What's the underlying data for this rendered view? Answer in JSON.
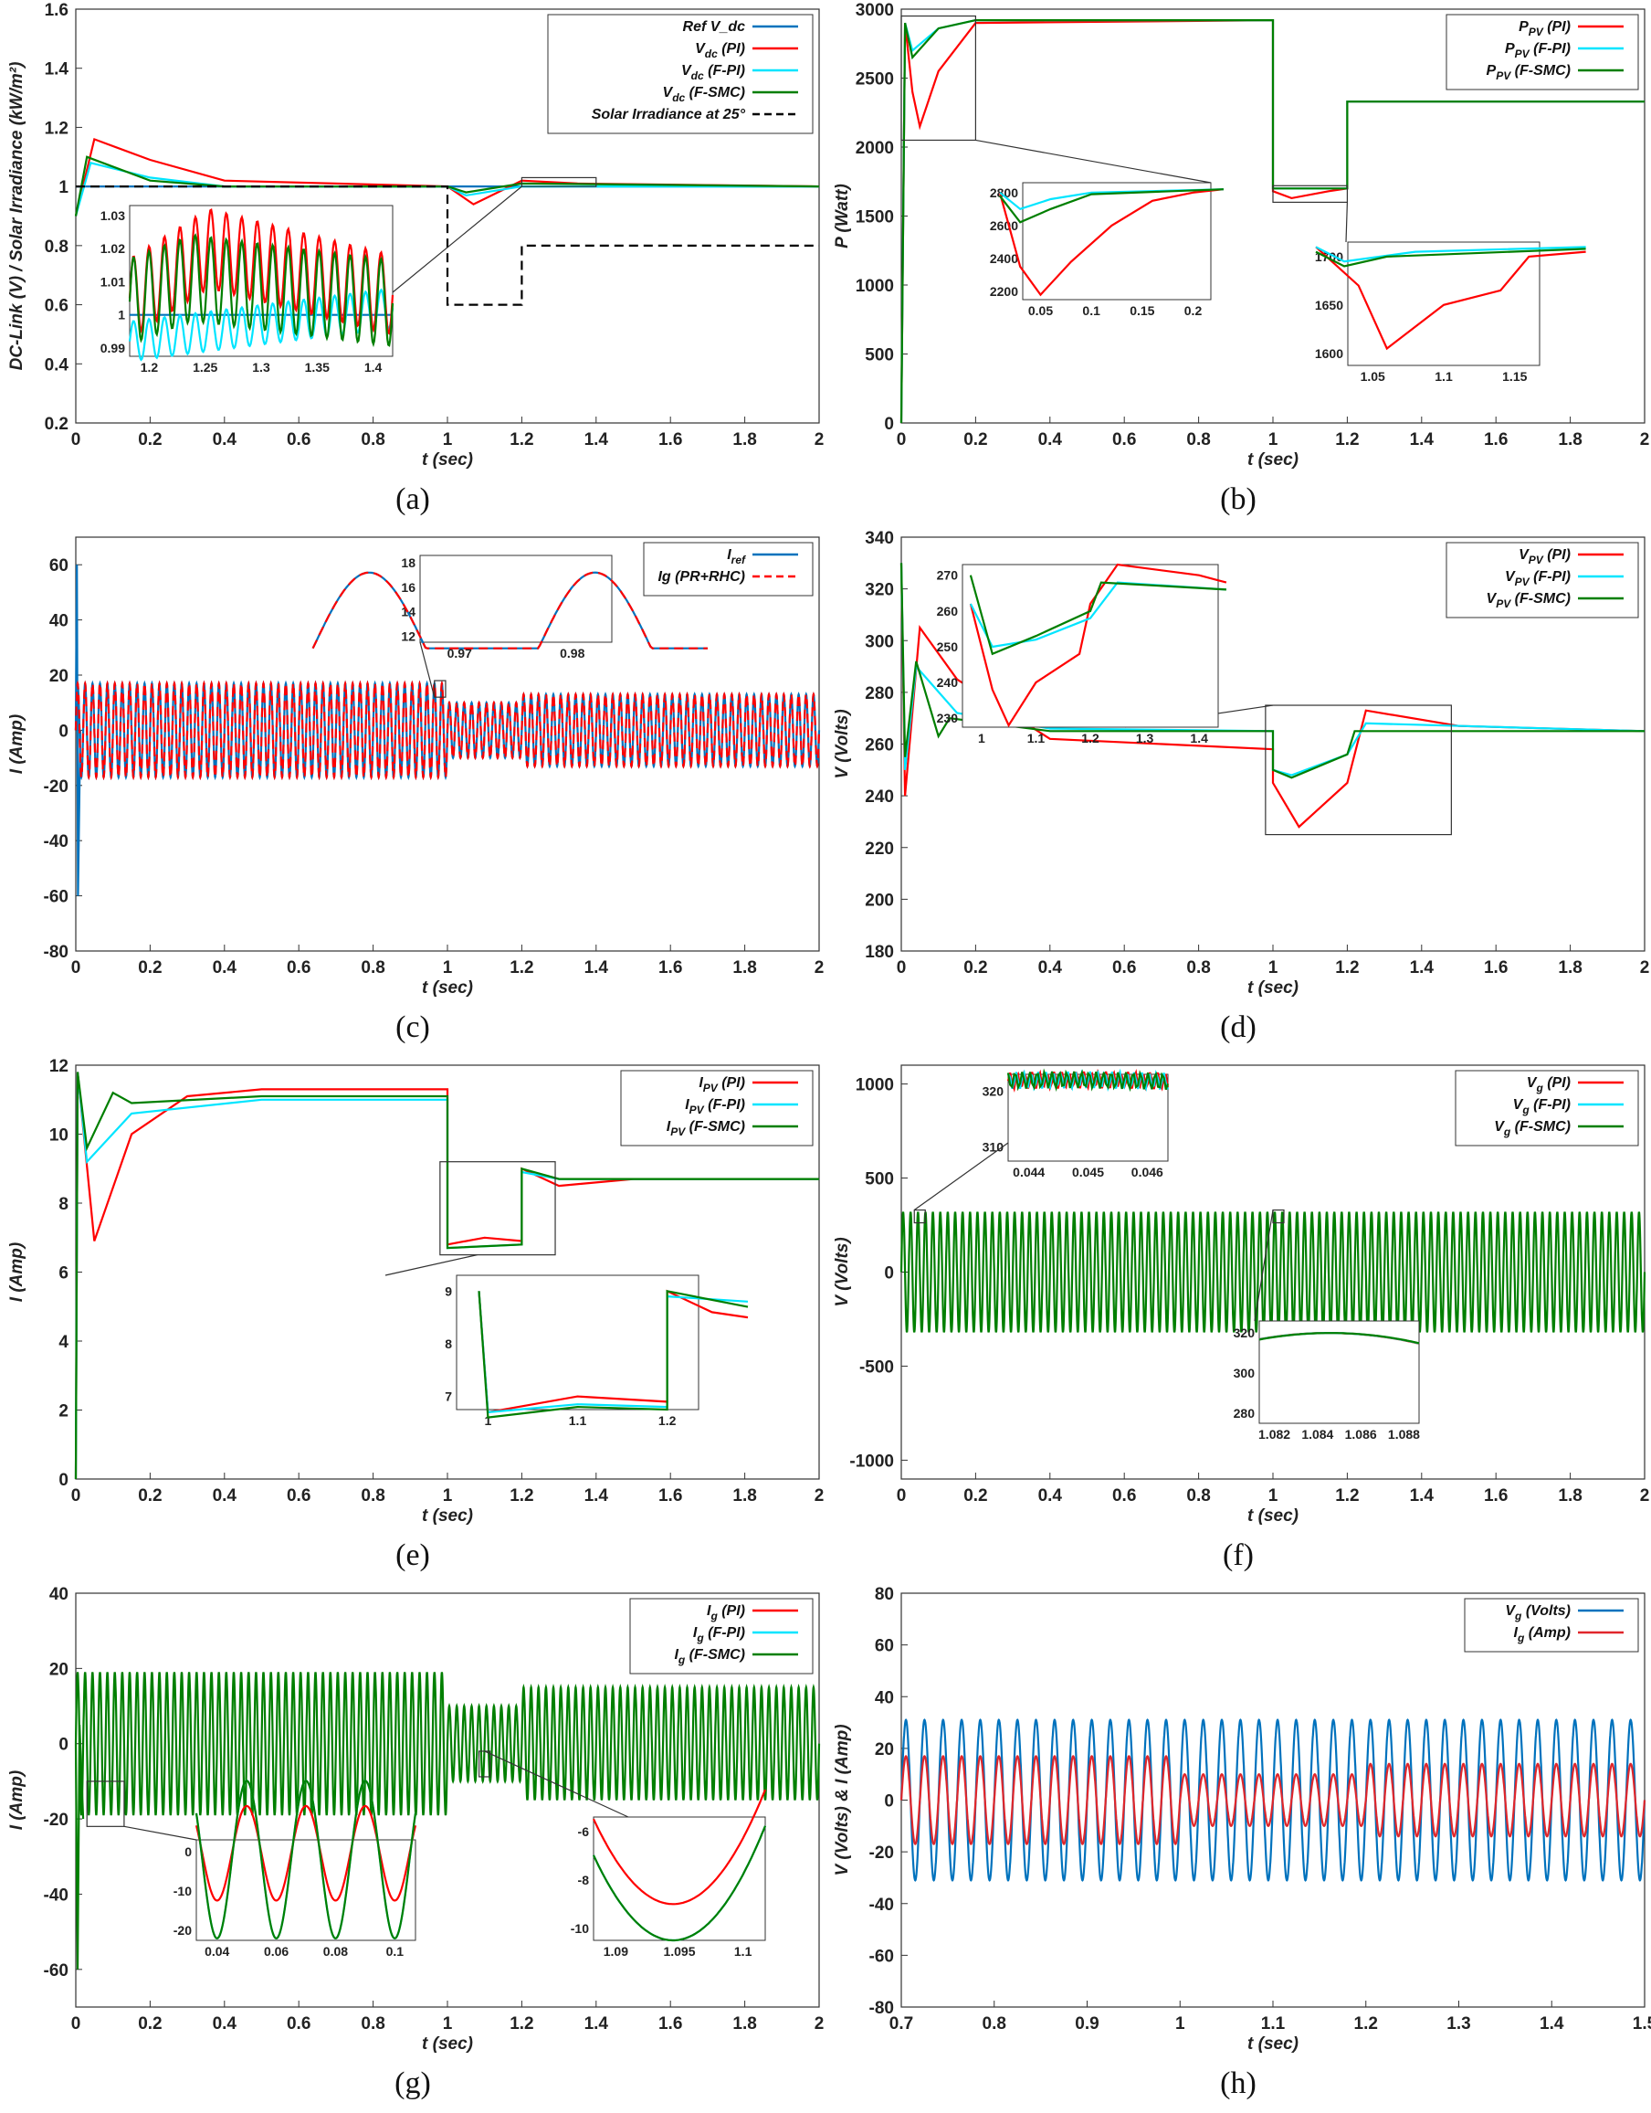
{
  "chart_data": [
    {
      "id": "a",
      "panel_label": "(a)",
      "type": "line",
      "xlabel": "t (sec)",
      "ylabel": "DC-Link (V) / Solar Irradiance  (kW/m²)",
      "xlim": [
        0,
        2
      ],
      "ylim": [
        0.2,
        1.6
      ],
      "xticks": [
        "0",
        "0.2",
        "0.4",
        "0.6",
        "0.8",
        "1",
        "1.2",
        "1.4",
        "1.6",
        "1.8",
        "2"
      ],
      "yticks": [
        "0.2",
        "0.4",
        "0.6",
        "0.8",
        "1",
        "1.2",
        "1.4",
        "1.6"
      ],
      "legend": [
        "Ref V_dc",
        "V_dc (PI)",
        "V_dc (F-PI)",
        "V_dc (F-SMC)",
        "Solar Irradiance at 25°"
      ],
      "series": [
        {
          "name": "Ref V_dc",
          "color": "#0072BD",
          "points": [
            [
              0,
              1
            ],
            [
              2,
              1
            ]
          ]
        },
        {
          "name": "V_dc (PI)",
          "color": "#FF0000",
          "points": [
            [
              0,
              0.9
            ],
            [
              0.05,
              1.16
            ],
            [
              0.2,
              1.09
            ],
            [
              0.4,
              1.02
            ],
            [
              1.0,
              1.0
            ],
            [
              1.07,
              0.94
            ],
            [
              1.2,
              1.02
            ],
            [
              1.35,
              1.01
            ],
            [
              2,
              1.0
            ]
          ]
        },
        {
          "name": "V_dc (F-PI)",
          "color": "#00E5FF",
          "points": [
            [
              0,
              0.9
            ],
            [
              0.04,
              1.08
            ],
            [
              0.2,
              1.03
            ],
            [
              0.4,
              1.0
            ],
            [
              1.0,
              1.0
            ],
            [
              1.05,
              0.97
            ],
            [
              1.2,
              1.0
            ],
            [
              2,
              1.0
            ]
          ]
        },
        {
          "name": "V_dc (F-SMC)",
          "color": "#007F00",
          "points": [
            [
              0,
              0.9
            ],
            [
              0.03,
              1.1
            ],
            [
              0.2,
              1.02
            ],
            [
              0.4,
              1.0
            ],
            [
              1.0,
              1.0
            ],
            [
              1.05,
              0.98
            ],
            [
              1.2,
              1.01
            ],
            [
              2,
              1.0
            ]
          ]
        },
        {
          "name": "Solar Irradiance at 25°",
          "color": "#000000",
          "dashed": true,
          "points": [
            [
              0,
              1
            ],
            [
              1,
              1
            ],
            [
              1,
              0.6
            ],
            [
              1.2,
              0.6
            ],
            [
              1.2,
              0.8
            ],
            [
              2,
              0.8
            ]
          ]
        }
      ],
      "inset_xticks": [
        "1.2",
        "1.25",
        "1.3",
        "1.35",
        "1.4"
      ],
      "inset_yticks": [
        "0.99",
        "1",
        "1.01",
        "1.02",
        "1.03"
      ]
    },
    {
      "id": "b",
      "panel_label": "(b)",
      "type": "line",
      "xlabel": "t (sec)",
      "ylabel": "P (Watt)",
      "xlim": [
        0,
        2
      ],
      "ylim": [
        0,
        3000
      ],
      "xticks": [
        "0",
        "0.2",
        "0.4",
        "0.6",
        "0.8",
        "1",
        "1.2",
        "1.4",
        "1.6",
        "1.8",
        "2"
      ],
      "yticks": [
        "0",
        "500",
        "1000",
        "1500",
        "2000",
        "2500",
        "3000"
      ],
      "legend": [
        "P_PV (PI)",
        "P_PV (F-PI)",
        "P_PV (F-SMC)"
      ],
      "series": [
        {
          "name": "P_PV (PI)",
          "color": "#FF0000",
          "points": [
            [
              0,
              0
            ],
            [
              0.01,
              2900
            ],
            [
              0.03,
              2400
            ],
            [
              0.05,
              2150
            ],
            [
              0.1,
              2550
            ],
            [
              0.2,
              2900
            ],
            [
              1,
              2920
            ],
            [
              1,
              1680
            ],
            [
              1.05,
              1630
            ],
            [
              1.15,
              1680
            ],
            [
              1.2,
              1700
            ],
            [
              1.2,
              2330
            ],
            [
              2,
              2330
            ]
          ]
        },
        {
          "name": "P_PV (F-PI)",
          "color": "#00E5FF",
          "points": [
            [
              0,
              0
            ],
            [
              0.01,
              2900
            ],
            [
              0.03,
              2700
            ],
            [
              0.1,
              2860
            ],
            [
              0.2,
              2920
            ],
            [
              1,
              2920
            ],
            [
              1,
              1700
            ],
            [
              1.2,
              1700
            ],
            [
              1.2,
              2330
            ],
            [
              2,
              2330
            ]
          ]
        },
        {
          "name": "P_PV (F-SMC)",
          "color": "#007F00",
          "points": [
            [
              0,
              0
            ],
            [
              0.01,
              2900
            ],
            [
              0.03,
              2650
            ],
            [
              0.1,
              2860
            ],
            [
              0.2,
              2920
            ],
            [
              1,
              2920
            ],
            [
              1,
              1700
            ],
            [
              1.2,
              1700
            ],
            [
              1.2,
              2330
            ],
            [
              2,
              2330
            ]
          ]
        }
      ],
      "inset1_xticks": [
        "0.05",
        "0.1",
        "0.15",
        "0.2"
      ],
      "inset1_yticks": [
        "2200",
        "2400",
        "2600",
        "2800"
      ],
      "inset2_xticks": [
        "1.05",
        "1.1",
        "1.15"
      ],
      "inset2_yticks": [
        "1600",
        "1650",
        "1700"
      ]
    },
    {
      "id": "c",
      "panel_label": "(c)",
      "type": "line",
      "xlabel": "t (sec)",
      "ylabel": "I (Amp)",
      "xlim": [
        0,
        2
      ],
      "ylim": [
        -80,
        70
      ],
      "xticks": [
        "0",
        "0.2",
        "0.4",
        "0.6",
        "0.8",
        "1",
        "1.2",
        "1.4",
        "1.6",
        "1.8",
        "2"
      ],
      "yticks": [
        "-80",
        "-60",
        "-40",
        "-20",
        "0",
        "20",
        "40",
        "60"
      ],
      "legend": [
        "I_ref",
        "Ig (PR+RHC)"
      ],
      "series": [
        {
          "name": "I_ref",
          "color": "#0072BD",
          "amplitude_segments": [
            [
              0,
              1,
              17
            ],
            [
              1,
              1.2,
              10
            ],
            [
              1.2,
              2,
              13
            ]
          ]
        },
        {
          "name": "Ig (PR+RHC)",
          "color": "#FF0000",
          "dashed": true,
          "amplitude_segments": [
            [
              0,
              1,
              17
            ],
            [
              1,
              1.2,
              10
            ],
            [
              1.2,
              2,
              13
            ]
          ]
        }
      ],
      "inset_xticks": [
        "0.97",
        "0.98"
      ],
      "inset_yticks": [
        "12",
        "14",
        "16",
        "18"
      ]
    },
    {
      "id": "d",
      "panel_label": "(d)",
      "type": "line",
      "xlabel": "t (sec)",
      "ylabel": "V (Volts)",
      "xlim": [
        0,
        2
      ],
      "ylim": [
        180,
        340
      ],
      "xticks": [
        "0",
        "0.2",
        "0.4",
        "0.6",
        "0.8",
        "1",
        "1.2",
        "1.4",
        "1.6",
        "1.8",
        "2"
      ],
      "yticks": [
        "180",
        "200",
        "220",
        "240",
        "260",
        "280",
        "300",
        "320",
        "340"
      ],
      "legend": [
        "V_PV (PI)",
        "V_PV (F-PI)",
        "V_PV (F-SMC)"
      ],
      "series": [
        {
          "name": "V_PV (PI)",
          "color": "#FF0000",
          "points": [
            [
              0,
              330
            ],
            [
              0.01,
              240
            ],
            [
              0.05,
              305
            ],
            [
              0.15,
              285
            ],
            [
              0.4,
              262
            ],
            [
              1,
              258
            ],
            [
              1,
              245
            ],
            [
              1.07,
              228
            ],
            [
              1.2,
              245
            ],
            [
              1.25,
              273
            ],
            [
              1.5,
              267
            ],
            [
              2,
              265
            ]
          ]
        },
        {
          "name": "V_PV (F-PI)",
          "color": "#00E5FF",
          "points": [
            [
              0,
              330
            ],
            [
              0.01,
              250
            ],
            [
              0.04,
              290
            ],
            [
              0.15,
              272
            ],
            [
              0.4,
              266
            ],
            [
              1,
              265
            ],
            [
              1,
              250
            ],
            [
              1.05,
              248
            ],
            [
              1.2,
              256
            ],
            [
              1.25,
              268
            ],
            [
              2,
              265
            ]
          ]
        },
        {
          "name": "V_PV (F-SMC)",
          "color": "#007F00",
          "points": [
            [
              0,
              330
            ],
            [
              0.01,
              255
            ],
            [
              0.04,
              292
            ],
            [
              0.1,
              263
            ],
            [
              0.13,
              270
            ],
            [
              0.4,
              265
            ],
            [
              1,
              265
            ],
            [
              1,
              250
            ],
            [
              1.05,
              247
            ],
            [
              1.2,
              256
            ],
            [
              1.22,
              265
            ],
            [
              2,
              265
            ]
          ]
        }
      ],
      "inset_xticks": [
        "1",
        "1.1",
        "1.2",
        "1.3",
        "1.4"
      ],
      "inset_yticks": [
        "230",
        "240",
        "250",
        "260",
        "270"
      ]
    },
    {
      "id": "e",
      "panel_label": "(e)",
      "type": "line",
      "xlabel": "t (sec)",
      "ylabel": "I (Amp)",
      "xlim": [
        0,
        2
      ],
      "ylim": [
        0,
        12
      ],
      "xticks": [
        "0",
        "0.2",
        "0.4",
        "0.6",
        "0.8",
        "1",
        "1.2",
        "1.4",
        "1.6",
        "1.8",
        "2"
      ],
      "yticks": [
        "0",
        "2",
        "4",
        "6",
        "8",
        "10",
        "12"
      ],
      "legend": [
        "I_PV (PI)",
        "I_PV (F-PI)",
        "I_PV (F-SMC)"
      ],
      "series": [
        {
          "name": "I_PV (PI)",
          "color": "#FF0000",
          "points": [
            [
              0,
              0
            ],
            [
              0.005,
              11.8
            ],
            [
              0.05,
              6.9
            ],
            [
              0.15,
              10
            ],
            [
              0.3,
              11.1
            ],
            [
              0.5,
              11.3
            ],
            [
              1,
              11.3
            ],
            [
              1,
              6.8
            ],
            [
              1.1,
              7.0
            ],
            [
              1.2,
              6.9
            ],
            [
              1.2,
              9.0
            ],
            [
              1.3,
              8.5
            ],
            [
              1.5,
              8.7
            ],
            [
              2,
              8.7
            ]
          ]
        },
        {
          "name": "I_PV (F-PI)",
          "color": "#00E5FF",
          "points": [
            [
              0,
              0
            ],
            [
              0.005,
              11.8
            ],
            [
              0.03,
              9.2
            ],
            [
              0.15,
              10.6
            ],
            [
              0.5,
              11.0
            ],
            [
              1,
              11.0
            ],
            [
              1,
              6.7
            ],
            [
              1.2,
              6.8
            ],
            [
              1.2,
              8.9
            ],
            [
              1.3,
              8.7
            ],
            [
              2,
              8.7
            ]
          ]
        },
        {
          "name": "I_PV (F-SMC)",
          "color": "#007F00",
          "points": [
            [
              0,
              0
            ],
            [
              0.005,
              11.8
            ],
            [
              0.03,
              9.6
            ],
            [
              0.1,
              11.2
            ],
            [
              0.15,
              10.9
            ],
            [
              0.5,
              11.1
            ],
            [
              1,
              11.1
            ],
            [
              1,
              6.7
            ],
            [
              1.2,
              6.8
            ],
            [
              1.2,
              9.0
            ],
            [
              1.3,
              8.7
            ],
            [
              2,
              8.7
            ]
          ]
        }
      ],
      "inset_xticks": [
        "1",
        "1.1",
        "1.2"
      ],
      "inset_yticks": [
        "7",
        "8",
        "9"
      ]
    },
    {
      "id": "f",
      "panel_label": "(f)",
      "type": "line",
      "xlabel": "t (sec)",
      "ylabel": "V (Volts)",
      "xlim": [
        0,
        2
      ],
      "ylim": [
        -1100,
        1100
      ],
      "xticks": [
        "0",
        "0.2",
        "0.4",
        "0.6",
        "0.8",
        "1",
        "1.2",
        "1.4",
        "1.6",
        "1.8",
        "2"
      ],
      "yticks": [
        "-1000",
        "-500",
        "0",
        "500",
        "1000"
      ],
      "legend": [
        "V_g (PI)",
        "V_g (F-PI)",
        "V_g (F-SMC)"
      ],
      "series": [
        {
          "name": "V_g (F-SMC)",
          "color": "#007F00",
          "amplitude_segments": [
            [
              0,
              2,
              320
            ]
          ]
        }
      ],
      "inset1_xticks": [
        "0.044",
        "0.045",
        "0.046"
      ],
      "inset1_yticks": [
        "310",
        "320"
      ],
      "inset2_xticks": [
        "1.082",
        "1.084",
        "1.086",
        "1.088"
      ],
      "inset2_yticks": [
        "280",
        "300",
        "320"
      ]
    },
    {
      "id": "g",
      "panel_label": "(g)",
      "type": "line",
      "xlabel": "t (sec)",
      "ylabel": "I (Amp)",
      "xlim": [
        0,
        2
      ],
      "ylim": [
        -70,
        40
      ],
      "xticks": [
        "0",
        "0.2",
        "0.4",
        "0.6",
        "0.8",
        "1",
        "1.2",
        "1.4",
        "1.6",
        "1.8",
        "2"
      ],
      "yticks": [
        "-60",
        "-40",
        "-20",
        "0",
        "20",
        "40"
      ],
      "legend": [
        "I_g (PI)",
        "I_g (F-PI)",
        "I_g (F-SMC)"
      ],
      "series": [
        {
          "name": "I_g (F-SMC)",
          "color": "#007F00",
          "amplitude_segments": [
            [
              0,
              1,
              19
            ],
            [
              1,
              1.2,
              10
            ],
            [
              1.2,
              2,
              15
            ]
          ]
        }
      ],
      "inset1_xticks": [
        "0.04",
        "0.06",
        "0.08",
        "0.1"
      ],
      "inset1_yticks": [
        "-20",
        "-10",
        "0"
      ],
      "inset2_xticks": [
        "1.09",
        "1.095",
        "1.1"
      ],
      "inset2_yticks": [
        "-10",
        "-8",
        "-6"
      ]
    },
    {
      "id": "h",
      "panel_label": "(h)",
      "type": "line",
      "xlabel": "t (sec)",
      "ylabel": "V (Volts) & I (Amp)",
      "xlim": [
        0.7,
        1.5
      ],
      "ylim": [
        -80,
        80
      ],
      "xticks": [
        "0.7",
        "0.8",
        "0.9",
        "1",
        "1.1",
        "1.2",
        "1.3",
        "1.4",
        "1.5"
      ],
      "yticks": [
        "-80",
        "-60",
        "-40",
        "-20",
        "0",
        "20",
        "40",
        "60",
        "80"
      ],
      "legend": [
        "V_g (Volts)",
        "I_g (Amp)"
      ],
      "series": [
        {
          "name": "V_g (Volts)",
          "color": "#0072BD",
          "amplitude_segments": [
            [
              0.7,
              1.5,
              31
            ]
          ]
        },
        {
          "name": "I_g (Amp)",
          "color": "#E0262B",
          "amplitude_segments": [
            [
              0.7,
              1.0,
              17
            ],
            [
              1.0,
              1.2,
              10
            ],
            [
              1.2,
              1.5,
              14
            ]
          ]
        }
      ]
    }
  ]
}
